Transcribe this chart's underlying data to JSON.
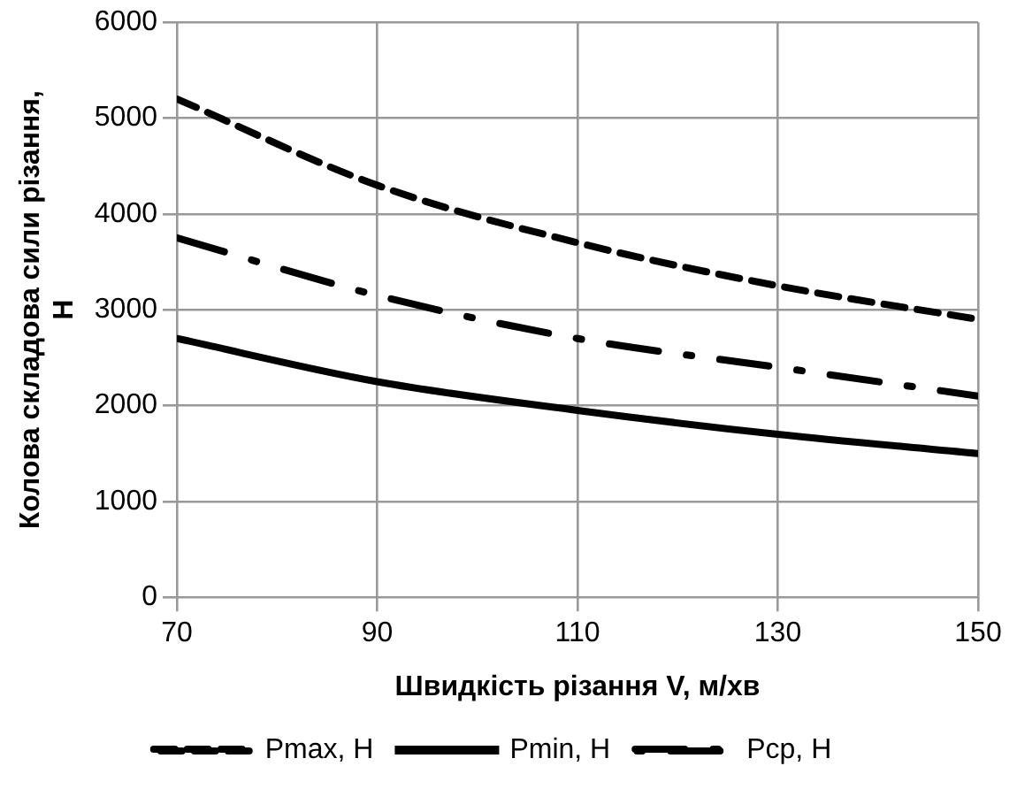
{
  "chart_data": {
    "type": "line",
    "xlabel": "Швидкість різання V, м/хв",
    "ylabel": "Колова складова сили різання, Н",
    "x": [
      70,
      90,
      110,
      130,
      150
    ],
    "series": [
      {
        "name": "Pmax, Н",
        "color": "#000000",
        "line_style": "dashed",
        "values": [
          5200,
          4300,
          3700,
          3250,
          2900
        ]
      },
      {
        "name": "Pmin, Н",
        "color": "#000000",
        "line_style": "solid",
        "values": [
          2700,
          2250,
          1950,
          1700,
          1500
        ]
      },
      {
        "name": "Pср, Н",
        "color": "#000000",
        "line_style": "dashdot",
        "values": [
          3750,
          3150,
          2700,
          2400,
          2100
        ]
      }
    ],
    "xlim": [
      70,
      150
    ],
    "xticks": [
      70,
      90,
      110,
      130,
      150
    ],
    "ylim": [
      0,
      6000
    ],
    "yticks": [
      0,
      1000,
      2000,
      3000,
      4000,
      5000,
      6000
    ],
    "grid": true,
    "legend": "bottom",
    "marker": "none"
  }
}
